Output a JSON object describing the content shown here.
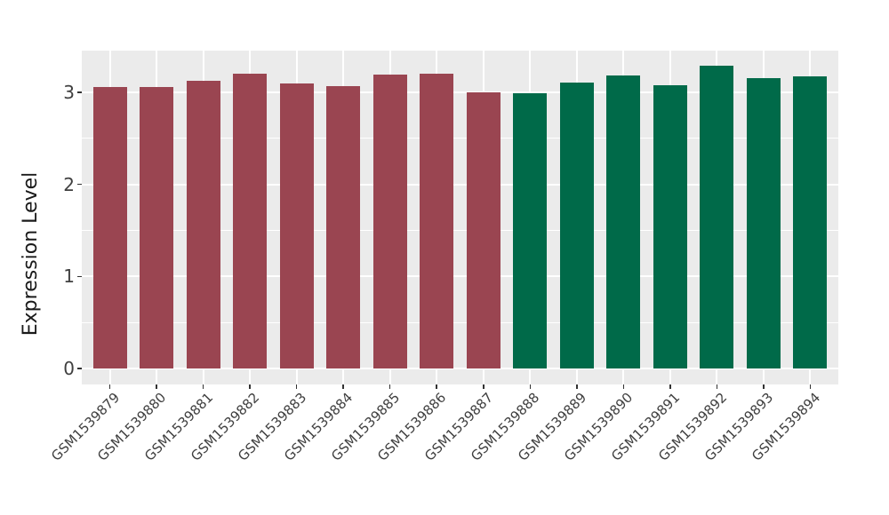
{
  "chart_data": {
    "type": "bar",
    "title": "",
    "xlabel": "",
    "ylabel": "Expression Level",
    "categories": [
      "GSM1539879",
      "GSM1539880",
      "GSM1539881",
      "GSM1539882",
      "GSM1539883",
      "GSM1539884",
      "GSM1539885",
      "GSM1539886",
      "GSM1539887",
      "GSM1539888",
      "GSM1539889",
      "GSM1539890",
      "GSM1539891",
      "GSM1539892",
      "GSM1539893",
      "GSM1539894"
    ],
    "values": [
      3.06,
      3.06,
      3.13,
      3.2,
      3.1,
      3.07,
      3.19,
      3.2,
      3.0,
      2.99,
      3.11,
      3.18,
      3.08,
      3.29,
      3.15,
      3.17
    ],
    "bar_colors": [
      "#9A4551",
      "#9A4551",
      "#9A4551",
      "#9A4551",
      "#9A4551",
      "#9A4551",
      "#9A4551",
      "#9A4551",
      "#9A4551",
      "#006A49",
      "#006A49",
      "#006A49",
      "#006A49",
      "#006A49",
      "#006A49",
      "#006A49"
    ],
    "group_colors": {
      "maroon": "#9A4551",
      "green": "#006A49"
    },
    "y_ticks": [
      0,
      1,
      2,
      3
    ],
    "y_minor_ticks": [
      0.5,
      1.5,
      2.5
    ],
    "ylim": [
      -0.17,
      3.45
    ],
    "grid": true,
    "legend": "none",
    "panel_background": "#EBEBEB",
    "gridline_color": "#FFFFFF",
    "axis_text_color": "#404040"
  }
}
